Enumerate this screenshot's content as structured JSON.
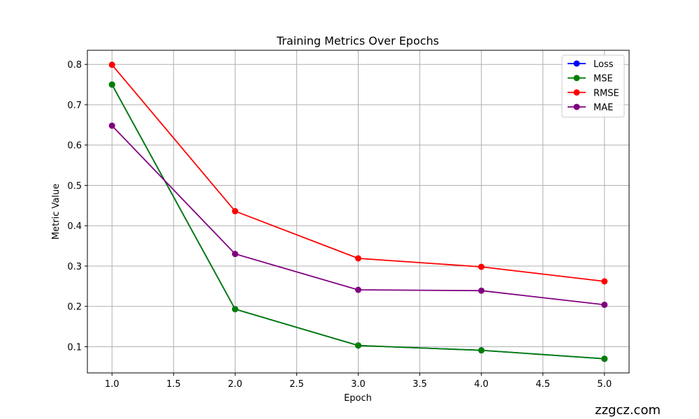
{
  "chart_data": {
    "type": "line",
    "title": "Training Metrics Over Epochs",
    "xlabel": "Epoch",
    "ylabel": "Metric Value",
    "x": [
      1,
      2,
      3,
      4,
      5
    ],
    "xlim": [
      0.8,
      5.2
    ],
    "ylim": [
      0.035,
      0.835
    ],
    "xticks": [
      1.0,
      1.5,
      2.0,
      2.5,
      3.0,
      3.5,
      4.0,
      4.5,
      5.0
    ],
    "xtick_labels": [
      "1.0",
      "1.5",
      "2.0",
      "2.5",
      "3.0",
      "3.5",
      "4.0",
      "4.5",
      "5.0"
    ],
    "yticks": [
      0.1,
      0.2,
      0.3,
      0.4,
      0.5,
      0.6,
      0.7,
      0.8
    ],
    "ytick_labels": [
      "0.1",
      "0.2",
      "0.3",
      "0.4",
      "0.5",
      "0.6",
      "0.7",
      "0.8"
    ],
    "grid": true,
    "legend_position": "top-right",
    "series": [
      {
        "name": "Loss",
        "color": "#0000ff",
        "values": [
          0.75,
          0.193,
          0.103,
          0.091,
          0.07
        ]
      },
      {
        "name": "MSE",
        "color": "#008000",
        "values": [
          0.75,
          0.193,
          0.103,
          0.091,
          0.07
        ]
      },
      {
        "name": "RMSE",
        "color": "#ff0000",
        "values": [
          0.799,
          0.436,
          0.319,
          0.298,
          0.262
        ]
      },
      {
        "name": "MAE",
        "color": "#800080",
        "values": [
          0.648,
          0.33,
          0.241,
          0.239,
          0.204
        ]
      }
    ]
  },
  "watermark": "zzgcz.com"
}
